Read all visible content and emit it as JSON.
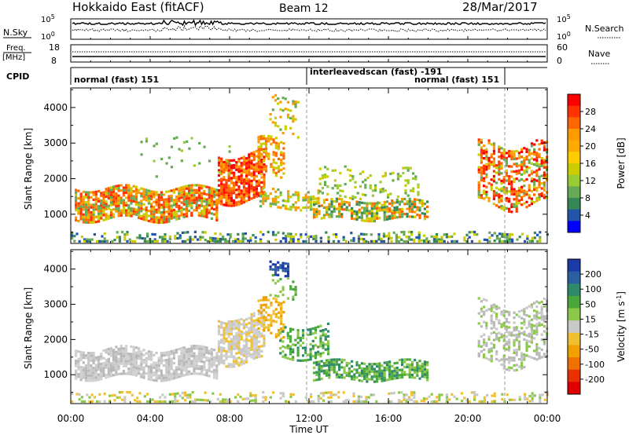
{
  "header": {
    "title": "Hokkaido East (fitACF)",
    "beam": "Beam 12",
    "date": "28/Mar/2017"
  },
  "strip": {
    "nsky_label": "N.Sky",
    "nsky_ticks": [
      "10^5",
      "10^0"
    ],
    "nsearch_label": "N.Search",
    "nsearch_ticks": [
      "10^5",
      "10^0"
    ],
    "freq_label": "Freq.",
    "freq_unit": "[MHz]",
    "freq_ticks": [
      "18",
      "8"
    ],
    "nave_label": "Nave",
    "nave_ticks": [
      "60",
      "0"
    ],
    "cpid_label": "CPID",
    "cpid_segments": [
      {
        "label": "normal (fast) 151"
      },
      {
        "label": "interleavedscan (fast) -191"
      },
      {
        "label": "normal (fast) 151"
      }
    ]
  },
  "chart_data": [
    {
      "type": "heatmap",
      "name": "power-panel",
      "ylabel": "Slant Range [km]",
      "yticks": [
        1000,
        2000,
        3000,
        4000
      ],
      "ylim": [
        180,
        4550
      ],
      "xlim": [
        0,
        24
      ],
      "colorbar": {
        "label": "Power [dB]",
        "ticks": [
          "28",
          "24",
          "20",
          "16",
          "12",
          "8",
          "4"
        ],
        "colors": [
          "#ff0000",
          "#ff3300",
          "#ff6600",
          "#ff9900",
          "#ffaa00",
          "#ffcc00",
          "#cccc00",
          "#99cc33",
          "#66aa55",
          "#338855",
          "#2255aa",
          "#0000ff"
        ]
      },
      "regions": [
        {
          "t": [
            0.2,
            7.3
          ],
          "r": [
            900,
            1750
          ],
          "colors": [
            "#ff3300",
            "#ff6600",
            "#ff9900",
            "#cccc00",
            "#66aa55"
          ],
          "density": 0.8
        },
        {
          "t": [
            7.4,
            9.8
          ],
          "r": [
            1400,
            2700
          ],
          "colors": [
            "#ff0000",
            "#ff3300",
            "#ff6600",
            "#ff9900"
          ],
          "density": 0.8
        },
        {
          "t": [
            9.4,
            10.7
          ],
          "r": [
            2000,
            3100
          ],
          "colors": [
            "#ff6600",
            "#ff9900",
            "#cccc00"
          ],
          "density": 0.5
        },
        {
          "t": [
            9.5,
            12.5
          ],
          "r": [
            1200,
            1700
          ],
          "colors": [
            "#66aa55",
            "#99cc33",
            "#cccc00",
            "#ff9900"
          ],
          "density": 0.5
        },
        {
          "t": [
            12.2,
            18.0
          ],
          "r": [
            850,
            1400
          ],
          "colors": [
            "#ff6600",
            "#ff9900",
            "#cccc00",
            "#66aa55",
            "#338855"
          ],
          "density": 0.65
        },
        {
          "t": [
            12.5,
            17.5
          ],
          "r": [
            1400,
            2300
          ],
          "colors": [
            "#66aa55",
            "#99cc33",
            "#cccc00"
          ],
          "density": 0.2
        },
        {
          "t": [
            20.5,
            24.0
          ],
          "r": [
            1300,
            3000
          ],
          "colors": [
            "#ff0000",
            "#ff3300",
            "#ff6600",
            "#ff9900",
            "#cccc00",
            "#66aa55"
          ],
          "density": 0.55
        },
        {
          "t": [
            10.0,
            11.5
          ],
          "r": [
            3300,
            4300
          ],
          "colors": [
            "#66aa55",
            "#cccc00",
            "#ff9900"
          ],
          "density": 0.25
        },
        {
          "t": [
            0.0,
            24.0
          ],
          "r": [
            190,
            500
          ],
          "colors": [
            "#66aa55",
            "#2255aa",
            "#338855",
            "#cccc00"
          ],
          "density": 0.35
        },
        {
          "t": [
            3.0,
            8.0
          ],
          "r": [
            2200,
            3200
          ],
          "colors": [
            "#66aa55",
            "#99cc33"
          ],
          "density": 0.05
        }
      ]
    },
    {
      "type": "heatmap",
      "name": "velocity-panel",
      "ylabel": "Slant Range [km]",
      "yticks": [
        1000,
        2000,
        3000,
        4000
      ],
      "ylim": [
        180,
        4550
      ],
      "xlim": [
        0,
        24
      ],
      "xticks": [
        "00:00",
        "04:00",
        "08:00",
        "12:00",
        "16:00",
        "20:00",
        "00:00"
      ],
      "xlabel": "Time UT",
      "colorbar": {
        "label": "Velocity [m s^-1]",
        "ticks": [
          "200",
          "100",
          "50",
          "15",
          "-15",
          "-50",
          "-100",
          "-200"
        ],
        "colors": [
          "#1a3aa8",
          "#2a5fa0",
          "#2e8a6a",
          "#4aa83a",
          "#8cc84a",
          "#c8c8c8",
          "#f0c030",
          "#f0a000",
          "#f07000",
          "#e83000",
          "#e00000"
        ]
      },
      "regions": [
        {
          "t": [
            0.2,
            7.3
          ],
          "r": [
            900,
            1750
          ],
          "colors": [
            "#c8c8c8",
            "#b8b8b8",
            "#d0d0d0"
          ],
          "density": 0.8
        },
        {
          "t": [
            7.4,
            9.8
          ],
          "r": [
            1400,
            2700
          ],
          "colors": [
            "#c8c8c8",
            "#f0c030",
            "#d0d0d0"
          ],
          "density": 0.75
        },
        {
          "t": [
            9.4,
            10.7
          ],
          "r": [
            2000,
            3100
          ],
          "colors": [
            "#f0c030",
            "#f0a000"
          ],
          "density": 0.5
        },
        {
          "t": [
            10.0,
            11.0
          ],
          "r": [
            3800,
            4200
          ],
          "colors": [
            "#1a3aa8",
            "#2a5fa0"
          ],
          "density": 0.5
        },
        {
          "t": [
            10.5,
            13.0
          ],
          "r": [
            1500,
            2400
          ],
          "colors": [
            "#2e8a6a",
            "#4aa83a",
            "#8cc84a"
          ],
          "density": 0.5
        },
        {
          "t": [
            12.2,
            18.0
          ],
          "r": [
            850,
            1400
          ],
          "colors": [
            "#4aa83a",
            "#8cc84a",
            "#2e8a6a"
          ],
          "density": 0.7
        },
        {
          "t": [
            20.5,
            24.0
          ],
          "r": [
            1300,
            3000
          ],
          "colors": [
            "#c8c8c8",
            "#b8b8b8",
            "#8cc84a"
          ],
          "density": 0.45
        },
        {
          "t": [
            0.0,
            24.0
          ],
          "r": [
            190,
            500
          ],
          "colors": [
            "#f0c030",
            "#c8c8c8",
            "#8cc84a"
          ],
          "density": 0.3
        },
        {
          "t": [
            10.0,
            11.5
          ],
          "r": [
            3200,
            3800
          ],
          "colors": [
            "#8cc84a",
            "#4aa83a"
          ],
          "density": 0.2
        }
      ]
    }
  ]
}
